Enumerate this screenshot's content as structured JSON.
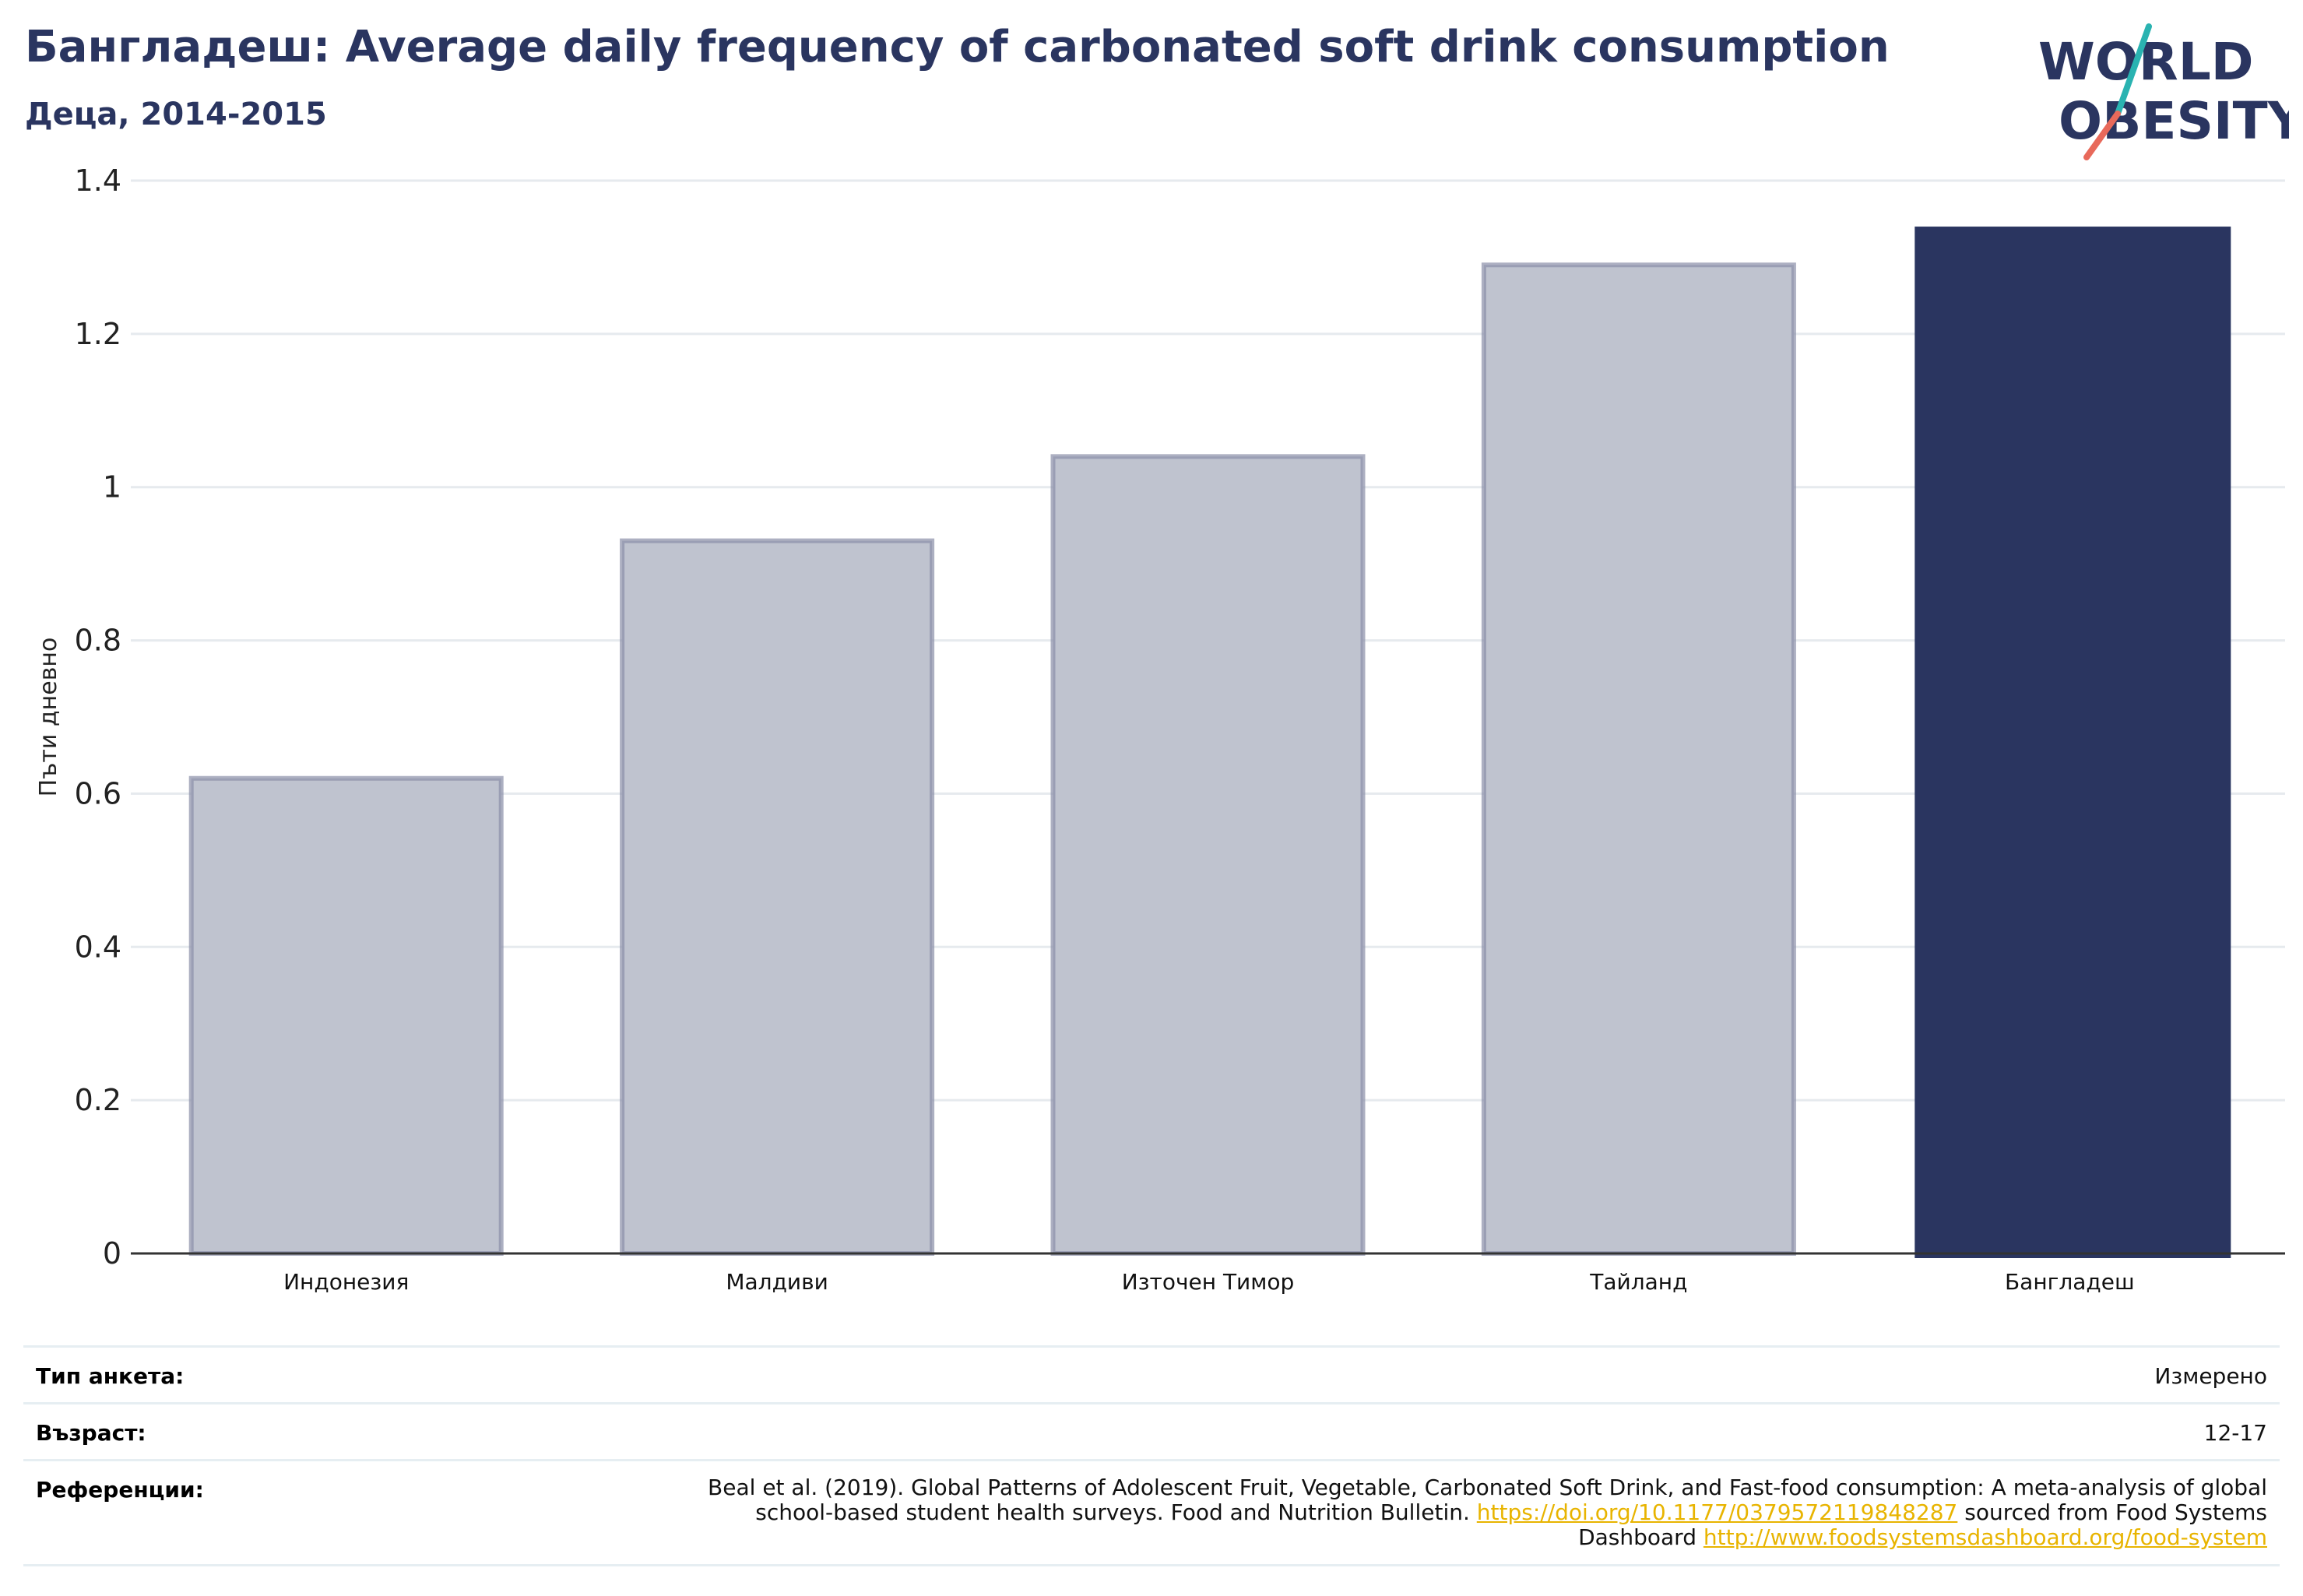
{
  "header": {
    "title": "Бангладеш: Average daily frequency of carbonated soft drink consumption",
    "subtitle": "Деца, 2014-2015"
  },
  "logo": {
    "text_line1": "WORLD",
    "text_line2": "OBESITY",
    "text_color": "#2a3560",
    "slash_colors": [
      "#2ab3b1",
      "#e8695a"
    ]
  },
  "chart_data": {
    "type": "bar",
    "title": "Бангладеш: Average daily frequency of carbonated soft drink consumption",
    "subtitle": "Деца, 2014-2015",
    "ylabel": "Пъти дневно",
    "xlabel": "",
    "categories": [
      "Индонезия",
      "Малдиви",
      "Източен Тимор",
      "Тайланд",
      "Бангладеш"
    ],
    "values": [
      0.62,
      0.93,
      1.04,
      1.29,
      1.34
    ],
    "highlight_index": 4,
    "ylim": [
      0,
      1.4
    ],
    "yticks": [
      0,
      0.2,
      0.4,
      0.6,
      0.8,
      1,
      1.2,
      1.4
    ],
    "ytick_labels": [
      "0",
      "0.2",
      "0.4",
      "0.6",
      "0.8",
      "1",
      "1.2",
      "1.4"
    ],
    "grid": true,
    "colors": {
      "highlight": "#2a3560",
      "muted_fill": "#bfc3cf",
      "muted_stroke": "#8a8fa8",
      "grid": "#e6eaee",
      "axis": "#333333"
    }
  },
  "info": {
    "survey_label": "Тип анкета:",
    "survey_value": "Измерено",
    "age_label": "Възраст:",
    "age_value": "12-17",
    "refs_label": "Референции:",
    "refs_text_1": "Beal et al. (2019). Global Patterns of Adolescent Fruit, Vegetable, Carbonated Soft Drink, and Fast-food consumption: A meta-analysis of global school-based student health surveys. Food and Nutrition Bulletin. ",
    "refs_link_1": "https://doi.org/10.1177/0379572119848287",
    "refs_text_2": " sourced from Food Systems Dashboard ",
    "refs_link_2": "http://www.foodsystemsdashboard.org/food-system"
  }
}
